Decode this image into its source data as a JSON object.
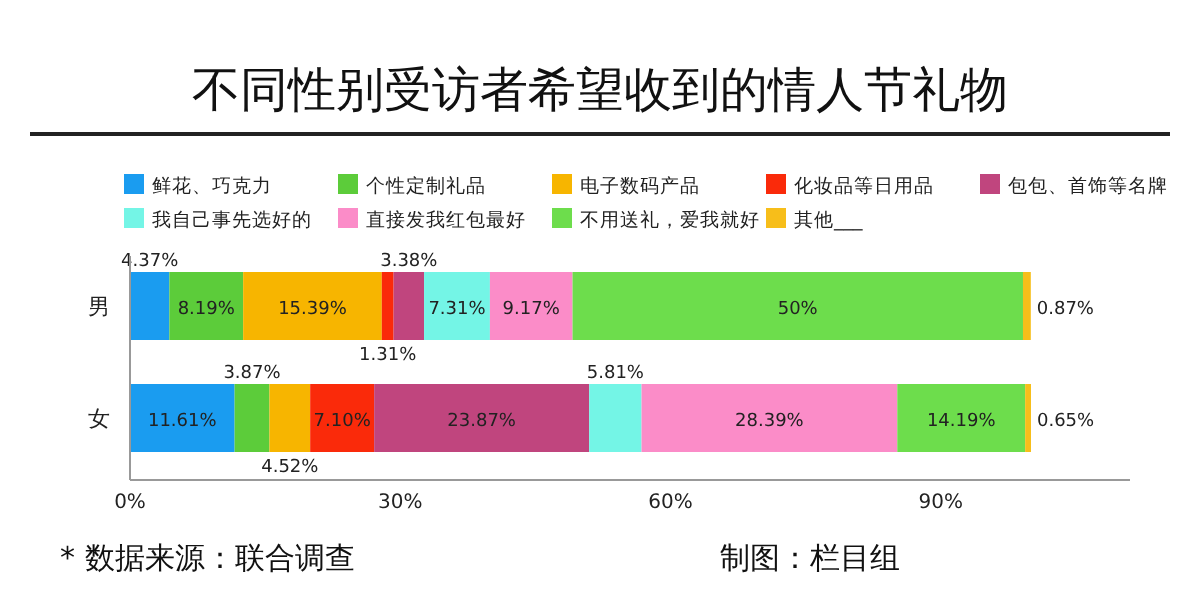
{
  "chart_data": {
    "type": "bar",
    "orientation": "horizontal",
    "stacked": true,
    "title": "不同性别受访者希望收到的情人节礼物",
    "categories": [
      "男",
      "女"
    ],
    "series": [
      {
        "name": "鲜花、巧克力",
        "color": "#1a9cf0",
        "values": [
          4.37,
          11.61
        ],
        "value_labels": [
          "4.37%",
          "11.61%"
        ]
      },
      {
        "name": "个性定制礼品",
        "color": "#5ccc3a",
        "values": [
          8.19,
          3.87
        ],
        "value_labels": [
          "8.19%",
          "3.87%"
        ]
      },
      {
        "name": "电子数码产品",
        "color": "#f7b500",
        "values": [
          15.39,
          4.52
        ],
        "value_labels": [
          "15.39%",
          "4.52%"
        ]
      },
      {
        "name": "化妆品等日用品",
        "color": "#fa2a0a",
        "values": [
          1.31,
          7.1
        ],
        "value_labels": [
          "1.31%",
          "7.10%"
        ]
      },
      {
        "name": "包包、首饰等名牌",
        "color": "#c0457e",
        "values": [
          3.38,
          23.87
        ],
        "value_labels": [
          "3.38%",
          "23.87%"
        ]
      },
      {
        "name": "我自己事先选好的",
        "color": "#74f5e6",
        "values": [
          7.31,
          5.81
        ],
        "value_labels": [
          "7.31%",
          "5.81%"
        ]
      },
      {
        "name": "直接发我红包最好",
        "color": "#fb8cc8",
        "values": [
          9.17,
          28.39
        ],
        "value_labels": [
          "9.17%",
          "28.39%"
        ]
      },
      {
        "name": "不用送礼，爱我就好",
        "color": "#6ddd4c",
        "values": [
          50,
          14.19
        ],
        "value_labels": [
          "50%",
          "14.19%"
        ]
      },
      {
        "name": "其他___",
        "color": "#f7be1a",
        "values": [
          0.87,
          0.65
        ],
        "value_labels": [
          "0.87%",
          "0.65%"
        ]
      }
    ],
    "xlim": [
      0,
      111
    ],
    "xticks": [
      {
        "value": 0,
        "label": "0%"
      },
      {
        "value": 30,
        "label": "30%"
      },
      {
        "value": 60,
        "label": "60%"
      },
      {
        "value": 90,
        "label": "90%"
      }
    ],
    "legend": "top",
    "annotations": [
      "* 数据来源：联合调查",
      "制图：栏目组"
    ]
  }
}
